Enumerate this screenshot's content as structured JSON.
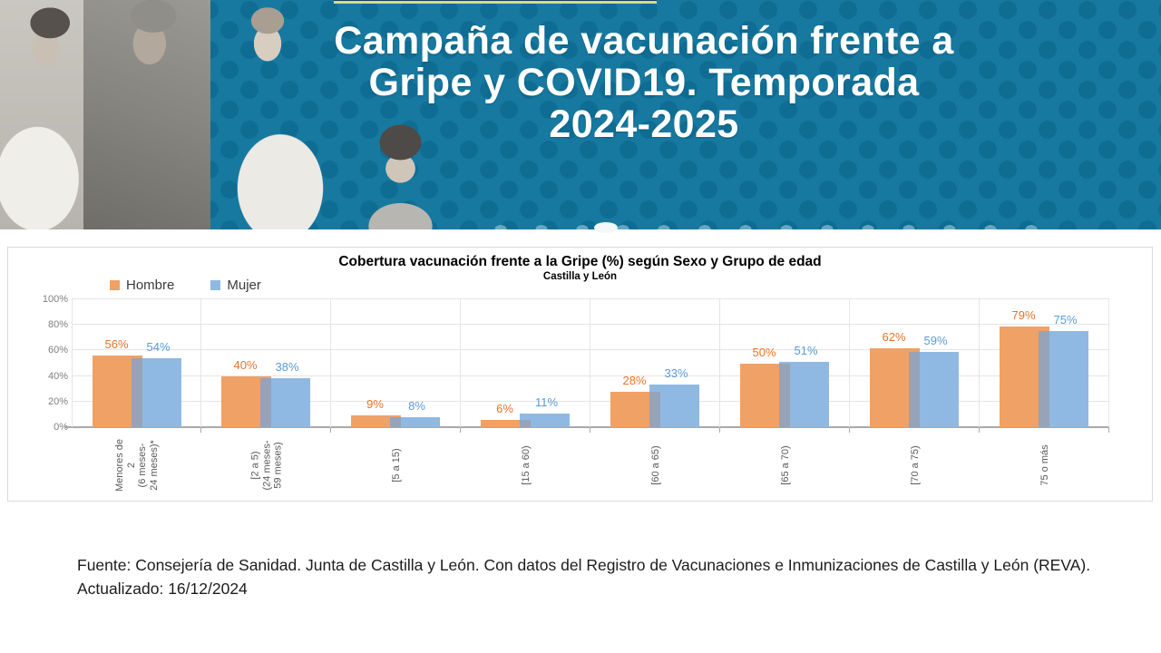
{
  "banner": {
    "title": "Campaña de vacunación frente a\nGripe y COVID19. Temporada\n2024-2025",
    "colors": {
      "background": "#1779A0",
      "dot": "#0F6D94",
      "title_text": "#FFFFFF",
      "topbar": "#1F3864",
      "topbar_underline": "#CBDF8E"
    },
    "photos": [
      "adult-woman-photo",
      "older-man-photo",
      "young-woman-photo",
      "child-photo"
    ]
  },
  "chart": {
    "title": "Cobertura vacunación frente a la Gripe (%) según Sexo y Grupo de edad",
    "subtitle": "Castilla y León"
  },
  "chart_data": {
    "type": "bar",
    "title": "Cobertura vacunación frente a la Gripe (%) según Sexo y Grupo de edad",
    "subtitle": "Castilla y León",
    "categories": [
      "Menores de\n2\n(6 meses-\n24 meses)*",
      "[2 a 5)\n(24 meses-\n59 meses)",
      "[5 a 15)",
      "[15 a 60)",
      "[60 a 65)",
      "[65 a 70)",
      "[70 a 75)",
      "75 o más"
    ],
    "series": [
      {
        "name": "Hombre",
        "color": "#F0A165",
        "label_color": "#E8732A",
        "values": [
          56,
          40,
          9,
          6,
          28,
          50,
          62,
          79
        ]
      },
      {
        "name": "Mujer",
        "color": "#8FB9E2",
        "label_color": "#5B9BD5",
        "values": [
          54,
          38,
          8,
          11,
          33,
          51,
          59,
          75
        ]
      }
    ],
    "overlap_color": "#96A3B9",
    "value_suffix": "%",
    "xlabel": "",
    "ylabel": "",
    "ylim": [
      0,
      100
    ],
    "yticks": [
      "0%",
      "20%",
      "40%",
      "60%",
      "80%",
      "100%"
    ],
    "grid": true,
    "legend_position": "top-left"
  },
  "footer": {
    "line1": "Fuente: Consejería de Sanidad. Junta de Castilla y León. Con datos del Registro de Vacunaciones e Inmunizaciones  de Castilla y León (REVA).",
    "line2": "Actualizado: 16/12/2024"
  }
}
